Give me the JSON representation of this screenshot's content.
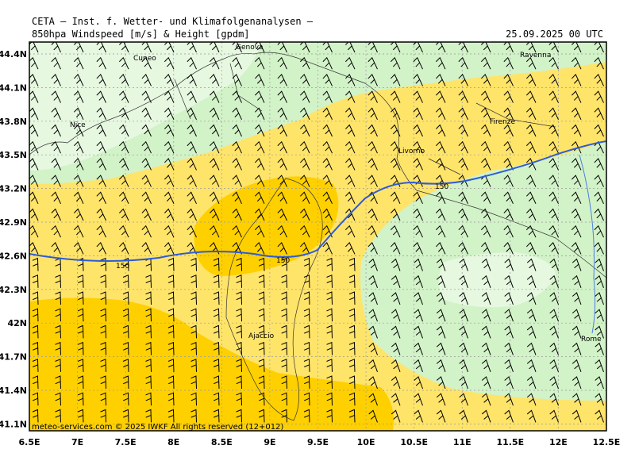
{
  "header": {
    "title": "CETA – Inst. f. Wetter- und Klimafolgenanalysen –",
    "parameter": "850hpa Windspeed [m/s] & Height [gpdm]",
    "datetime": "25.09.2025 00 UTC"
  },
  "axes": {
    "lon_ticks": [
      "6.5E",
      "7E",
      "7.5E",
      "8E",
      "8.5E",
      "9E",
      "9.5E",
      "10E",
      "10.5E",
      "11E",
      "11.5E",
      "12E",
      "12.5E"
    ],
    "lat_ticks": [
      "44.4N",
      "44.1N",
      "43.8N",
      "43.5N",
      "43.2N",
      "42.9N",
      "42.6N",
      "42.3N",
      "42N",
      "41.7N",
      "41.4N",
      "41.1N"
    ]
  },
  "cities": [
    {
      "name": "Genova"
    },
    {
      "name": "Cuneo"
    },
    {
      "name": "Nice"
    },
    {
      "name": "Ravenna"
    },
    {
      "name": "Firenze"
    },
    {
      "name": "Livorno"
    },
    {
      "name": "Ajaccio"
    },
    {
      "name": "Rome"
    }
  ],
  "contour_labels": [
    "150",
    "150",
    "150"
  ],
  "footer": "meteo-services.com  © 2025 IWKF  All rights reserved  (12+012)",
  "colors": {
    "pale_green": "#e6f8e0",
    "light_green": "#d2f2c8",
    "yellow": "#ffe46a",
    "orange": "#ffd000",
    "contour": "#2e5bd8",
    "grid": "#999999"
  }
}
